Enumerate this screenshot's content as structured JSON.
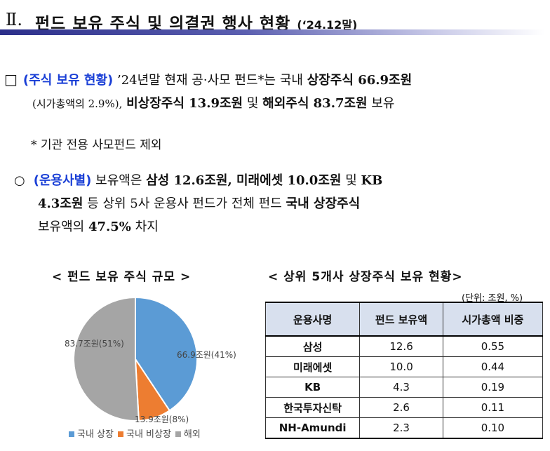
{
  "header": {
    "numeral": "Ⅱ.",
    "title": "펀드 보유 주식 및 의결권 행사 현황",
    "date": "(‘24.12말)"
  },
  "paragraph1": {
    "bullet": "□",
    "tag": "(주식 보유 현황)",
    "line1_rest": "’24년말 현재 공·사모 펀드*는 국내 ",
    "line1_bold": "상장주식 66.9조원",
    "line2_paren": "(시가총액의 2.9%),",
    "line2_bold1": "비상장주식 13.9조원",
    "line2_mid": " 및 ",
    "line2_bold2": "해외주식 83.7조원",
    "line2_end": " 보유"
  },
  "footnote": "* 기관 전용 사모펀드 제외",
  "paragraph2": {
    "bullet": "○",
    "tag": "(운용사별)",
    "line1_a": " 보유액은 ",
    "line1_b": "삼성 12.6조원, 미래에셋 10.0조원",
    "line1_c": " 및 ",
    "line1_d": "KB",
    "line2_a": "4.3조원",
    "line2_b": " 등 상위 5사 운용사 펀드가 전체 펀드 ",
    "line2_c": "국내 상장주식",
    "line3_a": "보유액의 ",
    "line3_b": "47.5%",
    "line3_c": " 차지"
  },
  "pie_caption": "< 펀드 보유 주식 규모 >",
  "table_caption": "< 상위 5개사 상장주식 보유 현황>",
  "unit": "(단위: 조원, %)",
  "chart_data": {
    "type": "pie",
    "title": "< 펀드 보유 주식 규모 >",
    "labels": [
      "국내 상장",
      "국내 비상장",
      "해외"
    ],
    "values": [
      66.9,
      13.9,
      83.7
    ],
    "data_labels": [
      "66.9조원(41%)",
      "13.9조원(8%)",
      "83.7조원(51%)"
    ],
    "colors": [
      "#5b9bd5",
      "#ed7d31",
      "#a5a5a5"
    ],
    "legend_position": "bottom"
  },
  "table": {
    "headers": [
      "운용사명",
      "펀드 보유액",
      "시가총액 비중"
    ],
    "rows": [
      [
        "삼성",
        "12.6",
        "0.55"
      ],
      [
        "미래에셋",
        "10.0",
        "0.44"
      ],
      [
        "KB",
        "4.3",
        "0.19"
      ],
      [
        "한국투자신탁",
        "2.6",
        "0.11"
      ],
      [
        "NH-Amundi",
        "2.3",
        "0.10"
      ]
    ]
  }
}
